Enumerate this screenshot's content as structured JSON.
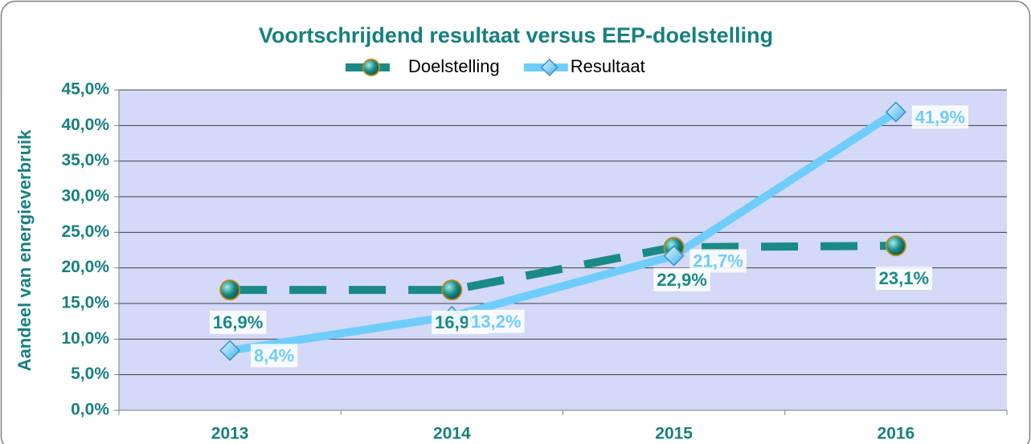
{
  "chart_data": {
    "type": "line",
    "title": "Voortschrijdend resultaat versus EEP-doelstelling",
    "ylabel": "Aandeel van energieverbruik",
    "categories": [
      "2013",
      "2014",
      "2015",
      "2016"
    ],
    "series": [
      {
        "name": "Doelstelling",
        "color": "#1a8a86",
        "dashed": true,
        "marker": "circle",
        "values": [
          16.9,
          16.9,
          22.9,
          23.1
        ],
        "value_labels": [
          "16,9%",
          "16,9%",
          "22,9%",
          "23,1%"
        ]
      },
      {
        "name": "Resultaat",
        "color": "#6fcdfb",
        "dashed": false,
        "marker": "diamond",
        "values": [
          8.4,
          13.2,
          21.7,
          41.9
        ],
        "value_labels": [
          "8,4%",
          "13,2%",
          "21,7%",
          "41,9%"
        ]
      }
    ],
    "ylim": [
      0,
      45
    ],
    "yticks": [
      {
        "value": 0,
        "label": "0,0%"
      },
      {
        "value": 5,
        "label": "5,0%"
      },
      {
        "value": 10,
        "label": "10,0%"
      },
      {
        "value": 15,
        "label": "15,0%"
      },
      {
        "value": 20,
        "label": "20,0%"
      },
      {
        "value": 25,
        "label": "25,0%"
      },
      {
        "value": 30,
        "label": "30,0%"
      },
      {
        "value": 35,
        "label": "35,0%"
      },
      {
        "value": 40,
        "label": "40,0%"
      },
      {
        "value": 45,
        "label": "45,0%"
      }
    ],
    "grid": true,
    "legend": "top"
  }
}
